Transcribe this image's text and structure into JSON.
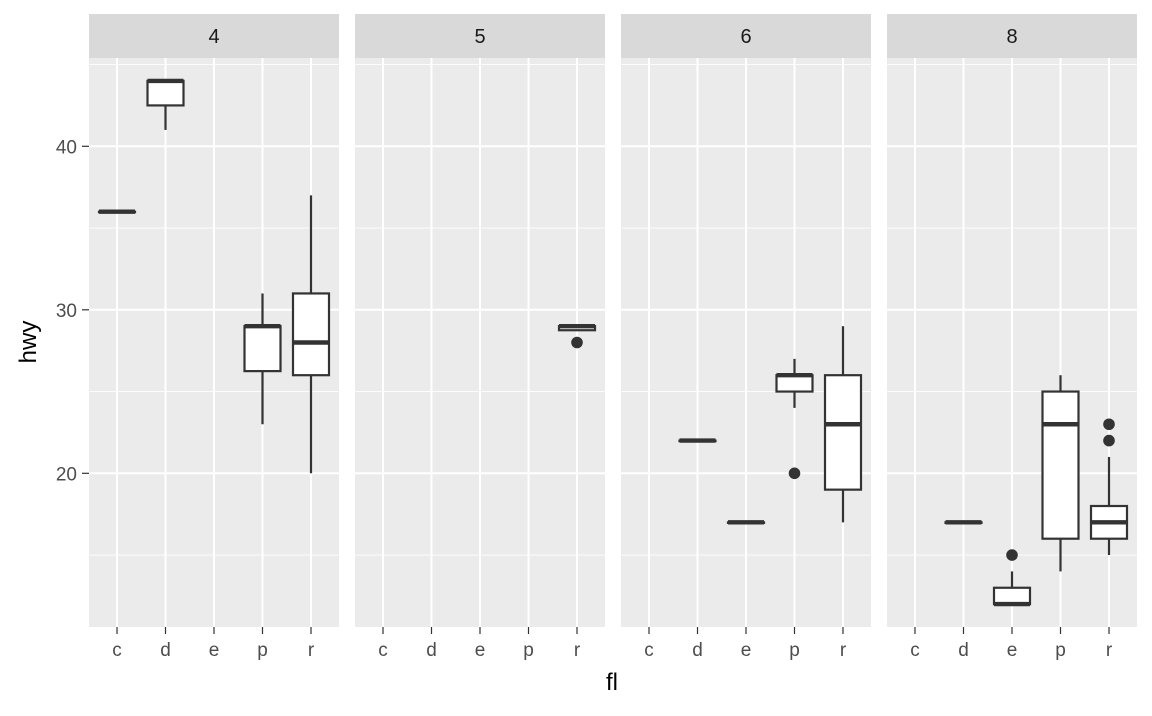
{
  "chart_data": {
    "type": "box",
    "facet_var_values": [
      "4",
      "5",
      "6",
      "8"
    ],
    "xlabel": "fl",
    "ylabel": "hwy",
    "categories": [
      "c",
      "d",
      "e",
      "p",
      "r"
    ],
    "ylim": [
      10.6,
      45.4
    ],
    "yticks": [
      20,
      30,
      40
    ],
    "grid": true,
    "panels": [
      {
        "strip": "4",
        "boxes": [
          {
            "cat": "c",
            "min": 36,
            "q1": 36,
            "median": 36,
            "q3": 36,
            "max": 36,
            "outliers": []
          },
          {
            "cat": "d",
            "min": 41,
            "q1": 42.5,
            "median": 44,
            "q3": 44,
            "max": 44,
            "outliers": []
          },
          {
            "cat": "p",
            "min": 23,
            "q1": 26.25,
            "median": 29,
            "q3": 29,
            "max": 31,
            "outliers": []
          },
          {
            "cat": "r",
            "min": 20,
            "q1": 26,
            "median": 28,
            "q3": 31,
            "max": 37,
            "outliers": []
          }
        ]
      },
      {
        "strip": "5",
        "boxes": [
          {
            "cat": "r",
            "min": 28.75,
            "q1": 28.75,
            "median": 29,
            "q3": 29,
            "max": 29,
            "outliers": [
              28
            ]
          }
        ]
      },
      {
        "strip": "6",
        "boxes": [
          {
            "cat": "d",
            "min": 22,
            "q1": 22,
            "median": 22,
            "q3": 22,
            "max": 22,
            "outliers": []
          },
          {
            "cat": "e",
            "min": 17,
            "q1": 17,
            "median": 17,
            "q3": 17,
            "max": 17,
            "outliers": []
          },
          {
            "cat": "p",
            "min": 24,
            "q1": 25,
            "median": 26,
            "q3": 26,
            "max": 27,
            "outliers": [
              20
            ]
          },
          {
            "cat": "r",
            "min": 17,
            "q1": 19,
            "median": 23,
            "q3": 26,
            "max": 29,
            "outliers": []
          }
        ]
      },
      {
        "strip": "8",
        "boxes": [
          {
            "cat": "d",
            "min": 17,
            "q1": 17,
            "median": 17,
            "q3": 17,
            "max": 17,
            "outliers": []
          },
          {
            "cat": "e",
            "min": 12,
            "q1": 12,
            "median": 12,
            "q3": 13,
            "max": 14,
            "outliers": [
              15
            ]
          },
          {
            "cat": "p",
            "min": 14,
            "q1": 16,
            "median": 23,
            "q3": 25,
            "max": 26,
            "outliers": []
          },
          {
            "cat": "r",
            "min": 15,
            "q1": 16,
            "median": 17,
            "q3": 18,
            "max": 21,
            "outliers": [
              22,
              23
            ]
          }
        ]
      }
    ]
  },
  "colors": {
    "panel_bg": "#ebebeb",
    "strip_bg": "#d9d9d9",
    "grid": "#ffffff",
    "box_stroke": "#333333",
    "box_fill": "#ffffff",
    "text": "#4d4d4d",
    "title_text": "#000000",
    "strip_text": "#1a1a1a"
  }
}
